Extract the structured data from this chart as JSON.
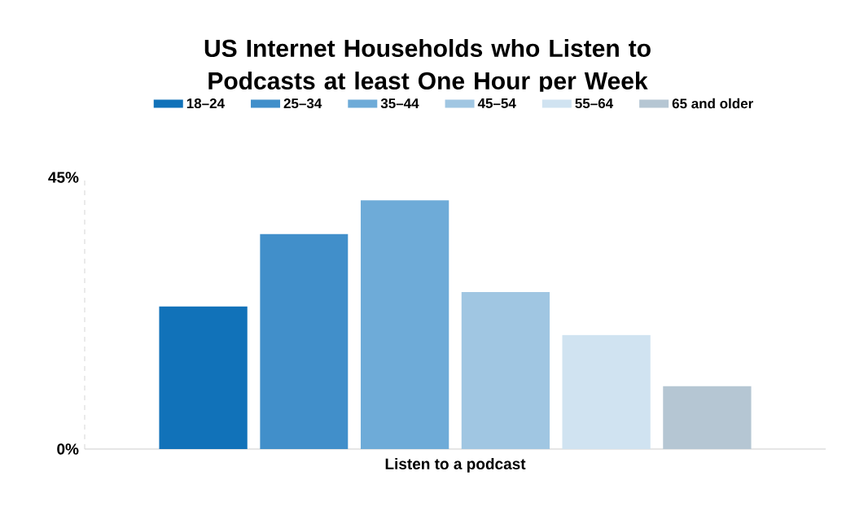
{
  "chart_data": {
    "type": "bar",
    "title": "US Internet Households who Listen to Podcasts at least One Hour per Week",
    "categories": [
      "Listen to a podcast"
    ],
    "series": [
      {
        "name": "18–24",
        "color": "#1172b9",
        "values": [
          23.6
        ]
      },
      {
        "name": "25–34",
        "color": "#418fca",
        "values": [
          35.6
        ]
      },
      {
        "name": "35–44",
        "color": "#6eabd8",
        "values": [
          41.2
        ]
      },
      {
        "name": "45–54",
        "color": "#a0c6e2",
        "values": [
          26.0
        ]
      },
      {
        "name": "55–64",
        "color": "#d0e3f1",
        "values": [
          18.9
        ]
      },
      {
        "name": "65 and older",
        "color": "#b5c6d3",
        "values": [
          10.4
        ]
      }
    ],
    "ylim": [
      0,
      45
    ],
    "yticks": [
      {
        "value": 0,
        "label": "0%"
      },
      {
        "value": 45,
        "label": "45%"
      }
    ],
    "legend": "top",
    "grid": false
  }
}
